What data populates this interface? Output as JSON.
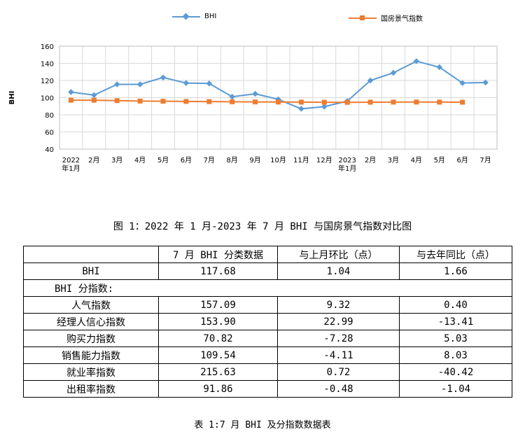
{
  "chart_data": {
    "type": "line",
    "categories": [
      "2022\n年1月",
      "2月",
      "3月",
      "4月",
      "5月",
      "6月",
      "7月",
      "8月",
      "9月",
      "10月",
      "11月",
      "12月",
      "2023\n年1月",
      "2月",
      "3月",
      "4月",
      "5月",
      "6月",
      "7月"
    ],
    "series": [
      {
        "name": "BHI",
        "color": "#5B9BD5",
        "marker": "diamond",
        "values": [
          106.5,
          103.0,
          115.5,
          115.5,
          123.5,
          117.0,
          116.5,
          101.0,
          104.5,
          98.0,
          87.0,
          89.5,
          96.0,
          120.0,
          129.0,
          142.5,
          135.5,
          117.0,
          117.7
        ]
      },
      {
        "name": "国房景气指数",
        "color": "#ED7D31",
        "marker": "square",
        "values": [
          97.0,
          97.0,
          96.5,
          96.0,
          95.8,
          95.6,
          95.4,
          95.2,
          95.0,
          94.9,
          94.8,
          94.6,
          94.5,
          94.7,
          94.8,
          94.9,
          94.8,
          94.7,
          null
        ]
      }
    ],
    "ylim": [
      40,
      160
    ],
    "yticks": [
      40,
      60,
      80,
      100,
      120,
      140,
      160
    ],
    "ylabel": "BHI",
    "grid": true,
    "legend": "top"
  },
  "figure_caption": "图 1：2022 年 1 月-2023 年 7 月 BHI 与国房景气指数对比图",
  "table": {
    "headers": [
      "",
      "7 月 BHI 分类数据",
      "与上月环比（点）",
      "与去年同比（点）"
    ],
    "bhi_row": [
      "BHI",
      "117.68",
      "1.04",
      "1.66"
    ],
    "sub_header": "BHI 分指数:",
    "rows": [
      [
        "人气指数",
        "157.09",
        "9.32",
        "0.40"
      ],
      [
        "经理人信心指数",
        "153.90",
        "22.99",
        "-13.41"
      ],
      [
        "购买力指数",
        "70.82",
        "-7.28",
        "5.03"
      ],
      [
        "销售能力指数",
        "109.54",
        "-4.11",
        "8.03"
      ],
      [
        "就业率指数",
        "215.63",
        "0.72",
        "-40.42"
      ],
      [
        "出租率指数",
        "91.86",
        "-0.48",
        "-1.04"
      ]
    ]
  },
  "table_caption": "表 1:7 月 BHI 及分指数数据表"
}
